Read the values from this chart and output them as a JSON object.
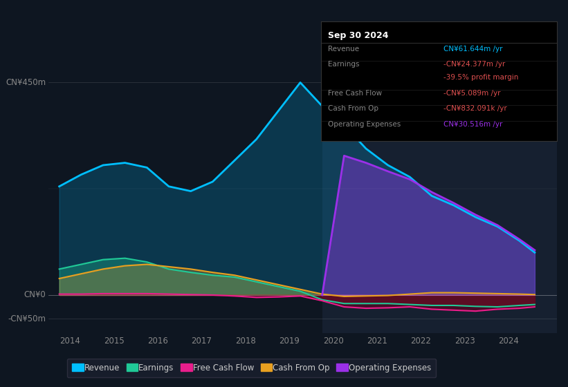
{
  "background_color": "#0e1621",
  "plot_bg_color": "#0e1621",
  "x_ticks": [
    2014,
    2015,
    2016,
    2017,
    2018,
    2019,
    2020,
    2021,
    2022,
    2023,
    2024
  ],
  "years": [
    2013.75,
    2014.25,
    2014.75,
    2015.25,
    2015.75,
    2016.25,
    2016.75,
    2017.25,
    2017.75,
    2018.25,
    2018.75,
    2019.25,
    2019.75,
    2020.25,
    2020.75,
    2021.25,
    2021.75,
    2022.25,
    2022.75,
    2023.25,
    2023.75,
    2024.25,
    2024.6
  ],
  "revenue": [
    230,
    255,
    275,
    280,
    270,
    230,
    220,
    240,
    285,
    330,
    390,
    450,
    400,
    360,
    310,
    275,
    250,
    210,
    190,
    165,
    145,
    115,
    90
  ],
  "earnings": [
    55,
    65,
    75,
    78,
    70,
    55,
    48,
    42,
    38,
    28,
    18,
    8,
    -10,
    -18,
    -18,
    -18,
    -20,
    -22,
    -22,
    -24,
    -25,
    -22,
    -20
  ],
  "free_cash_flow": [
    2,
    2,
    3,
    3,
    3,
    2,
    1,
    0,
    -2,
    -5,
    -4,
    -2,
    -12,
    -25,
    -28,
    -27,
    -25,
    -30,
    -32,
    -34,
    -30,
    -28,
    -25
  ],
  "cash_from_op": [
    35,
    45,
    55,
    62,
    65,
    60,
    55,
    48,
    42,
    32,
    22,
    12,
    2,
    -3,
    -2,
    -1,
    2,
    5,
    5,
    4,
    3,
    2,
    1
  ],
  "operating_expenses": [
    0,
    0,
    0,
    0,
    0,
    0,
    0,
    0,
    0,
    0,
    0,
    0,
    0,
    295,
    280,
    262,
    245,
    218,
    195,
    170,
    148,
    118,
    95
  ],
  "colors": {
    "revenue": "#00bfff",
    "earnings": "#20c997",
    "free_cash_flow": "#e91e8c",
    "cash_from_op": "#e8a020",
    "operating_expenses": "#9b30e8"
  },
  "ylim": [
    -80,
    510
  ],
  "xlim": [
    2013.5,
    2025.1
  ],
  "highlight_x_start": 2019.75,
  "highlight_x_end": 2025.1,
  "y_zero": 0,
  "y_top": 450,
  "y_neg": -50,
  "tooltip": {
    "title": "Sep 30 2024",
    "rows": [
      {
        "label": "Revenue",
        "value": "CN¥61.644m /yr",
        "label_color": "#888888",
        "value_color": "#00bfff"
      },
      {
        "label": "Earnings",
        "value": "-CN¥24.377m /yr",
        "label_color": "#888888",
        "value_color": "#e05050"
      },
      {
        "label": "",
        "value": "-39.5% profit margin",
        "label_color": "#888888",
        "value_color": "#e05050"
      },
      {
        "label": "Free Cash Flow",
        "value": "-CN¥5.089m /yr",
        "label_color": "#888888",
        "value_color": "#e05050"
      },
      {
        "label": "Cash From Op",
        "value": "-CN¥832.091k /yr",
        "label_color": "#888888",
        "value_color": "#e05050"
      },
      {
        "label": "Operating Expenses",
        "value": "CN¥30.516m /yr",
        "label_color": "#888888",
        "value_color": "#9b30e8"
      }
    ]
  },
  "legend": [
    {
      "label": "Revenue",
      "color": "#00bfff"
    },
    {
      "label": "Earnings",
      "color": "#20c997"
    },
    {
      "label": "Free Cash Flow",
      "color": "#e91e8c"
    },
    {
      "label": "Cash From Op",
      "color": "#e8a020"
    },
    {
      "label": "Operating Expenses",
      "color": "#9b30e8"
    }
  ]
}
